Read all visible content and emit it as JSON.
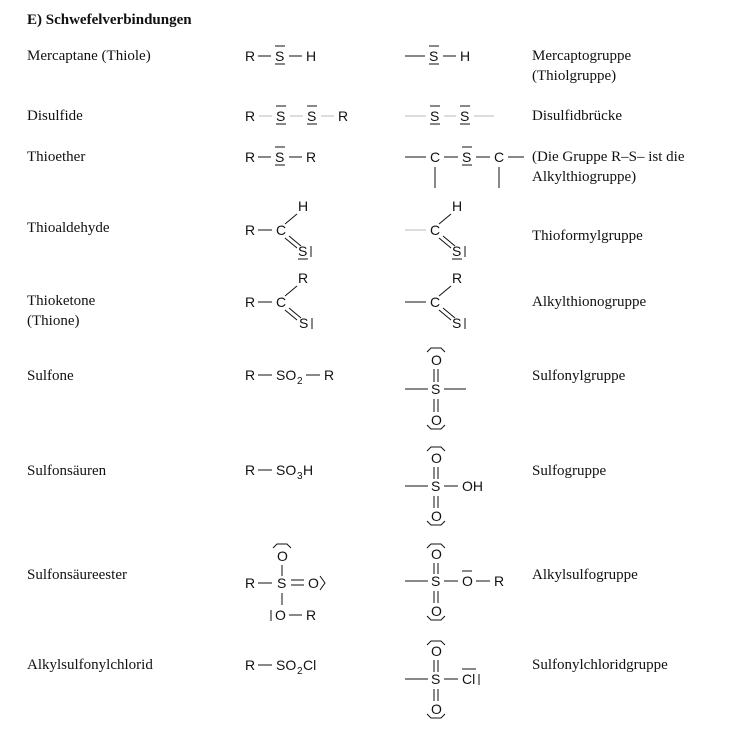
{
  "title": "E) Schwefelverbindungen",
  "rows": [
    {
      "name": "Mercaptane (Thiole)",
      "group": "Mercaptogruppe",
      "group2": "(Thiolgruppe)"
    },
    {
      "name": "Disulfide",
      "group": "Disulfidbrücke"
    },
    {
      "name": "Thioether",
      "group": "(Die Gruppe R–S– ist die",
      "group2": "Alkylthiogruppe)"
    },
    {
      "name": "Thioaldehyde",
      "group": "Thioformylgruppe"
    },
    {
      "name": "Thioketone",
      "name2": "(Thione)",
      "group": "Alkylthionogruppe"
    },
    {
      "name": "Sulfone",
      "group": "Sulfonylgruppe"
    },
    {
      "name": "Sulfonsäuren",
      "group": "Sulfogruppe"
    },
    {
      "name": "Sulfonsäureester",
      "group": "Alkylsulfogruppe"
    },
    {
      "name": "Alkylsulfonylchlorid",
      "group": "Sulfonylchloridgruppe"
    }
  ],
  "atoms": {
    "R": "R",
    "S": "S",
    "H": "H",
    "C": "C",
    "O": "O",
    "OH": "OH",
    "Cl": "Cl",
    "SO": "SO",
    "two": "2",
    "three": "3",
    "H_suffix": "H",
    "Cl_suffix": "Cl"
  }
}
